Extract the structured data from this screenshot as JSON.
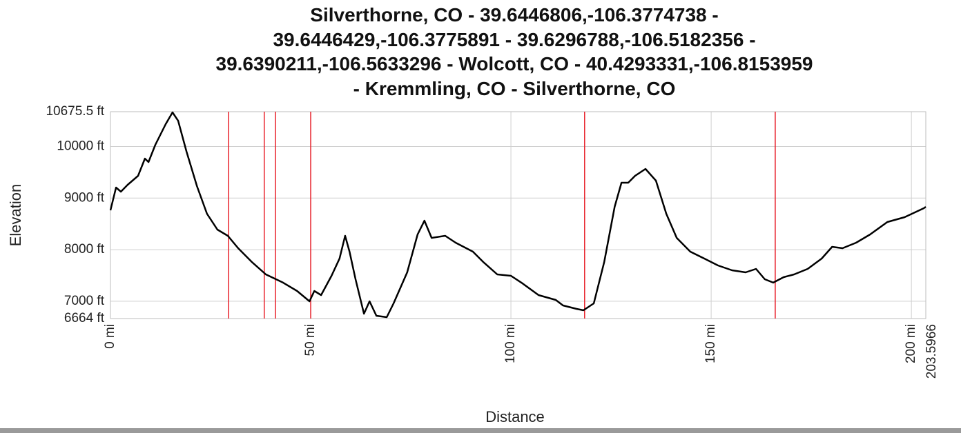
{
  "chart_data": {
    "type": "line",
    "title": "Silverthorne, CO - 39.6446806,-106.3774738 - 39.6446429,-106.3775891 - 39.6296788,-106.5182356 - 39.6390211,-106.5633296 - Wolcott, CO - 40.4293331,-106.8153959 - Kremmling, CO - Silverthorne, CO",
    "x_label": "Distance",
    "y_label": "Elevation",
    "xlim": [
      0,
      203.5966
    ],
    "ylim": [
      6664,
      10675.5
    ],
    "xticks": [
      {
        "value": 0,
        "label": "0 mi"
      },
      {
        "value": 50,
        "label": "50 mi"
      },
      {
        "value": 100,
        "label": "100 mi"
      },
      {
        "value": 150,
        "label": "150 mi"
      },
      {
        "value": 200,
        "label": "200 mi"
      },
      {
        "value": 203.5966,
        "label": "203.5966"
      }
    ],
    "yticks": [
      {
        "value": 6664,
        "label": "6664 ft"
      },
      {
        "value": 7000,
        "label": "7000 ft"
      },
      {
        "value": 8000,
        "label": "8000 ft"
      },
      {
        "value": 9000,
        "label": "9000 ft"
      },
      {
        "value": 10000,
        "label": "10000 ft"
      },
      {
        "value": 10675.5,
        "label": "10675.5 ft"
      }
    ],
    "grid": true,
    "color": "#000000",
    "x": [
      0,
      1.4,
      2.6,
      4.3,
      6.9,
      8.6,
      9.5,
      11.2,
      13.8,
      15.5,
      16.9,
      19.0,
      21.6,
      24.1,
      26.7,
      29.3,
      31.9,
      35.3,
      38.8,
      43.1,
      46.6,
      49.7,
      50.9,
      52.6,
      55.2,
      57.2,
      58.6,
      59.7,
      61.2,
      63.3,
      64.7,
      66.4,
      69.0,
      70.7,
      74.1,
      76.7,
      78.4,
      80.2,
      83.6,
      86.2,
      90.5,
      93.1,
      96.6,
      100,
      102.6,
      106.9,
      111.2,
      113.0,
      116.4,
      118.1,
      120.7,
      123.3,
      125.9,
      127.6,
      129.3,
      131.0,
      133.6,
      136.2,
      138.8,
      141.4,
      144.8,
      148.3,
      151.7,
      155.2,
      158.6,
      161.2,
      163.4,
      165.5,
      168.1,
      170.7,
      174.1,
      177.6,
      180.2,
      182.8,
      186.2,
      189.7,
      194.0,
      198.3,
      203.1,
      203.5966
    ],
    "values": [
      8763,
      9204,
      9124,
      9258,
      9432,
      9766,
      9700,
      10033,
      10435,
      10662,
      10500,
      9900,
      9231,
      8696,
      8389,
      8268,
      8028,
      7760,
      7520,
      7360,
      7199,
      6998,
      7199,
      7119,
      7493,
      7827,
      8268,
      7961,
      7426,
      6758,
      6998,
      6717,
      6691,
      6958,
      7560,
      8295,
      8562,
      8228,
      8268,
      8135,
      7961,
      7760,
      7520,
      7493,
      7360,
      7119,
      7025,
      6918,
      6851,
      6824,
      6958,
      7760,
      8830,
      9298,
      9298,
      9432,
      9565,
      9338,
      8696,
      8228,
      7961,
      7827,
      7694,
      7600,
      7560,
      7627,
      7426,
      7360,
      7466,
      7520,
      7627,
      7827,
      8054,
      8028,
      8135,
      8295,
      8536,
      8629,
      8803,
      8830
    ],
    "waypoints": {
      "color": "#e8202a",
      "x": [
        29.5,
        38.4,
        41.2,
        50.0,
        118.4,
        166.0
      ]
    }
  }
}
